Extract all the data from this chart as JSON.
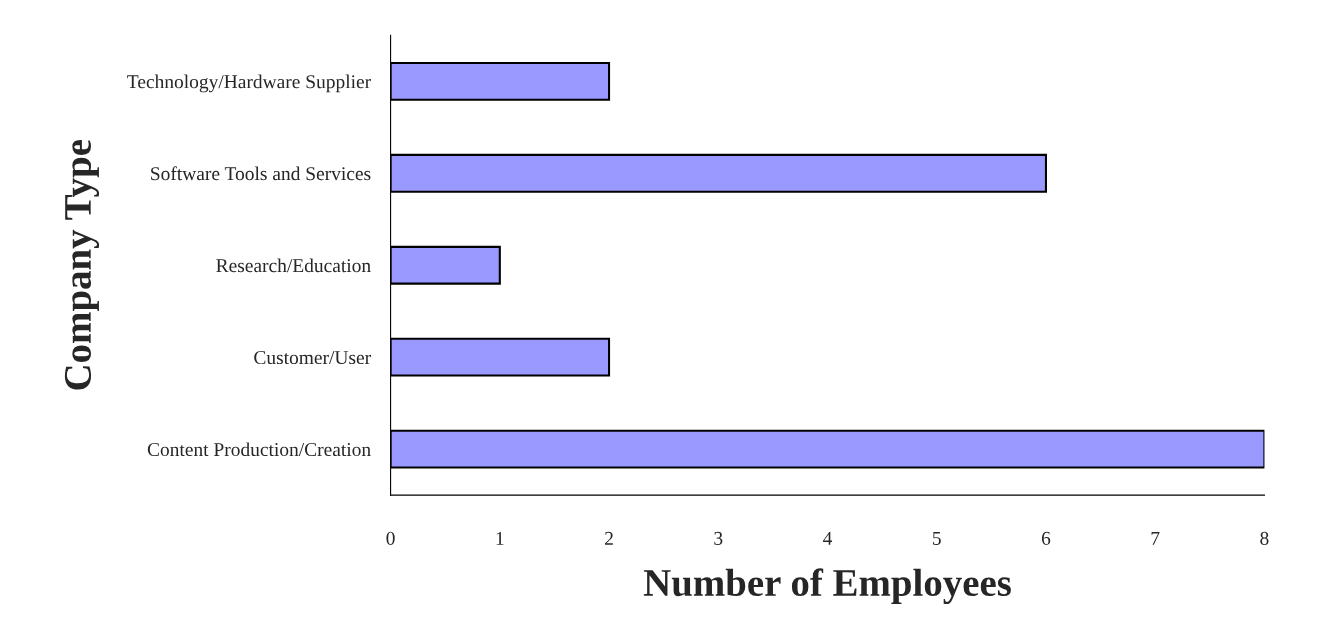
{
  "chart_data": {
    "type": "bar",
    "orientation": "horizontal",
    "xlabel": "Number of Employees",
    "ylabel": "Company Type",
    "categories": [
      "Technology/Hardware Supplier",
      "Software Tools and Services",
      "Research/Education",
      "Customer/User",
      "Content Production/Creation"
    ],
    "values": [
      2,
      6,
      1,
      2,
      8
    ],
    "color": "#9999ff",
    "xlim": [
      0,
      8
    ],
    "xticks": [
      0,
      1,
      2,
      3,
      4,
      5,
      6,
      7,
      8
    ],
    "grid": false,
    "legend": false
  }
}
